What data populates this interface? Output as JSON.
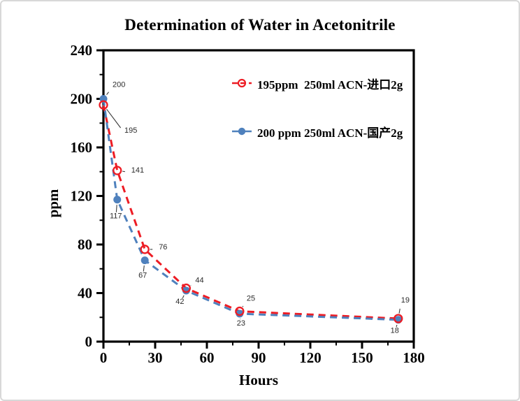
{
  "frame": {
    "background": "#ffffff",
    "border_color": "#d8d8d8"
  },
  "chart_data": {
    "type": "line",
    "title": "Determination of Water in Acetonitrile",
    "xlabel": "Hours",
    "ylabel": "ppm",
    "xlim": [
      0,
      180
    ],
    "ylim": [
      0,
      240
    ],
    "x_major_ticks": [
      0,
      30,
      60,
      90,
      120,
      150,
      180
    ],
    "x_minor_ticks": [
      15,
      45,
      75,
      105,
      135,
      165
    ],
    "y_major_ticks": [
      0,
      40,
      80,
      120,
      160,
      200,
      240
    ],
    "y_minor_ticks": [
      20,
      60,
      100,
      140,
      180,
      220
    ],
    "grid": false,
    "legend_position": "inside-top",
    "axis_color": "#000000",
    "point_label_color": "#2b2b2b",
    "series": [
      {
        "name": "195ppm  250ml ACN-进口2g",
        "color": "#ed1c24",
        "line_style": "dashed",
        "marker": "open-circle",
        "x": [
          0,
          8,
          24,
          48,
          79,
          171
        ],
        "y": [
          195,
          141,
          76,
          44,
          25,
          19
        ],
        "point_labels": [
          "195",
          "141",
          "76",
          "44",
          "25",
          "19"
        ]
      },
      {
        "name": "200 ppm 250ml ACN-国产2g",
        "color": "#4f81bd",
        "line_style": "dashed",
        "marker": "filled-circle",
        "x": [
          0,
          8,
          24,
          48,
          79,
          171
        ],
        "y": [
          200,
          117,
          67,
          42,
          23,
          18
        ],
        "point_labels": [
          "200",
          "117",
          "67",
          "42",
          "23",
          "18"
        ]
      }
    ]
  }
}
